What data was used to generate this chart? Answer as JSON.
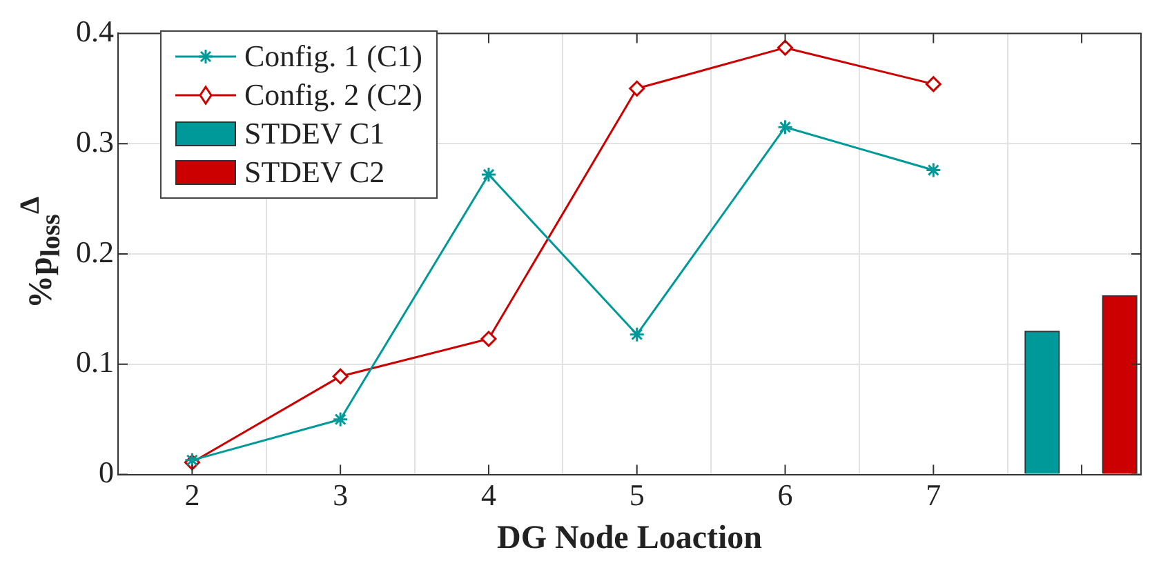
{
  "chart_data": {
    "type": "line",
    "xlabel": "DG Node Loaction",
    "ylabel": "%p$_{loss}$$^{Δ}$",
    "xlim": [
      1.5,
      8.4
    ],
    "xticks": [
      2,
      3,
      4,
      5,
      6,
      7,
      {
        "value": 8,
        "label": null
      }
    ],
    "ylim": [
      0,
      0.4
    ],
    "yticks": [
      0,
      0.1,
      0.2,
      0.3,
      0.4
    ],
    "grid": true,
    "legend": "top left",
    "series": [
      {
        "name": "Config. 1 (C1)",
        "marker": "cross",
        "color": "#009999",
        "x": [
          2,
          3,
          4,
          5,
          6,
          7
        ],
        "values": [
          0.013,
          0.05,
          0.272,
          0.127,
          0.315,
          0.276
        ]
      },
      {
        "name": "Config. 2 (C2)",
        "marker": "diamond",
        "color": "#cc0000",
        "x": [
          2,
          3,
          4,
          5,
          6,
          7
        ],
        "values": [
          0.011,
          0.089,
          0.123,
          0.35,
          0.387,
          0.354
        ]
      },
      {
        "name": "STDEV C1",
        "type": "bar",
        "color": "#009999",
        "x": [
          7.85
        ],
        "values": [
          0.13
        ]
      },
      {
        "name": "STDEV C2",
        "type": "bar",
        "color": "#cc0000",
        "x": [
          8.14
        ],
        "values": [
          0.162
        ]
      }
    ]
  }
}
